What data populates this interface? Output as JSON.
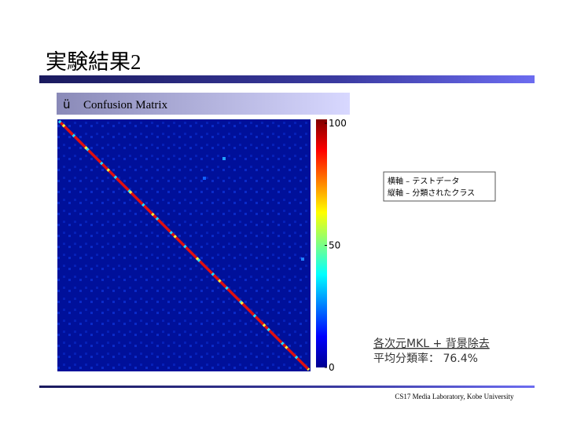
{
  "header": {
    "title": "実験結果2"
  },
  "bullet": {
    "mark": "ü",
    "text": "Confusion Matrix"
  },
  "colorbar": {
    "ticks": [
      100,
      50,
      0
    ]
  },
  "legend_box": {
    "lines": [
      "横軸 – テストデータ",
      "縦軸 – 分類されたクラス"
    ]
  },
  "result": {
    "method": "各次元MKL + 背景除去",
    "rate": "平均分類率： 76.4%"
  },
  "footer": {
    "text": "CS17 Media Laboratory, Kobe University"
  }
}
